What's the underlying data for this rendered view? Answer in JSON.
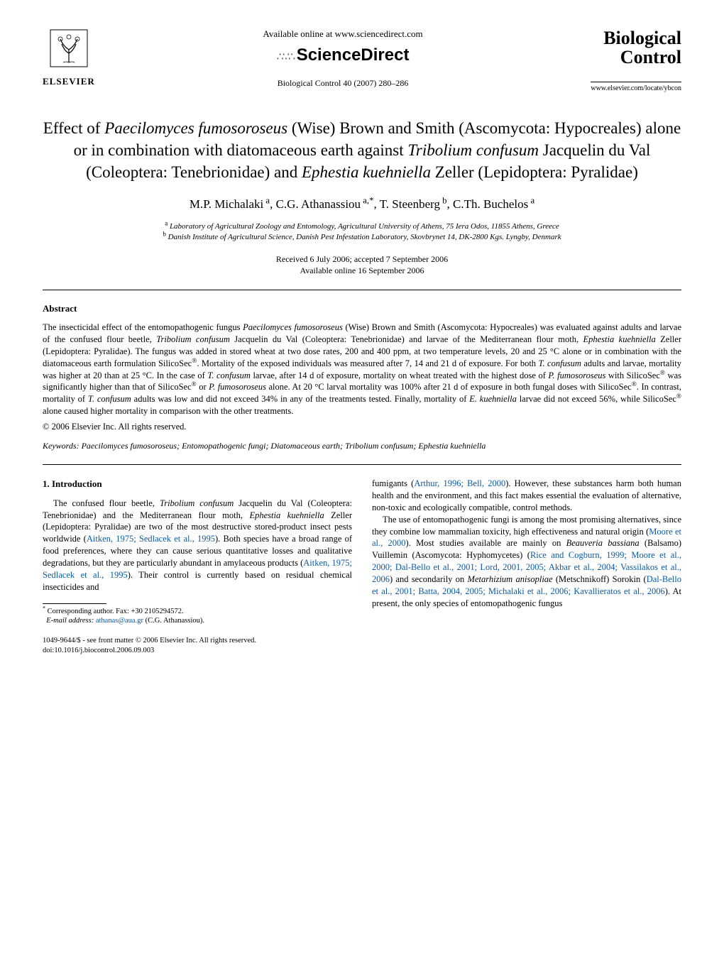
{
  "header": {
    "publisher_name": "ELSEVIER",
    "available_online": "Available online at www.sciencedirect.com",
    "platform_name": "ScienceDirect",
    "journal_citation": "Biological Control 40 (2007) 280–286",
    "journal_name_line1": "Biological",
    "journal_name_line2": "Control",
    "journal_url": "www.elsevier.com/locate/ybcon"
  },
  "title": "Effect of <em>Paecilomyces fumosoroseus</em> (Wise) Brown and Smith (Ascomycota: Hypocreales) alone or in combination with diatomaceous earth against <em>Tribolium confusum</em> Jacquelin du Val (Coleoptera: Tenebrionidae) and <em>Ephestia kuehniella</em> Zeller (Lepidoptera: Pyralidae)",
  "authors": "M.P. Michalaki<sup> a</sup>, C.G. Athanassiou<sup> a,*</sup>, T. Steenberg<sup> b</sup>, C.Th. Buchelos<sup> a</sup>",
  "affiliations": [
    "<sup>a</sup> Laboratory of Agricultural Zoology and Entomology, Agricultural University of Athens, 75 Iera Odos, 11855 Athens, Greece",
    "<sup>b</sup> Danish Institute of Agricultural Science, Danish Pest Infestation Laboratory, Skovbrynet 14, DK-2800 Kgs. Lyngby, Denmark"
  ],
  "dates": {
    "received_accepted": "Received 6 July 2006; accepted 7 September 2006",
    "available_online": "Available online 16 September 2006"
  },
  "abstract": {
    "heading": "Abstract",
    "body": "The insecticidal effect of the entomopathogenic fungus <em>Paecilomyces fumosoroseus</em> (Wise) Brown and Smith (Ascomycota: Hypocreales) was evaluated against adults and larvae of the confused flour beetle, <em>Tribolium confusum</em> Jacquelin du Val (Coleoptera: Tenebrionidae) and larvae of the Mediterranean flour moth, <em>Ephestia kuehniella</em> Zeller (Lepidoptera: Pyralidae). The fungus was added in stored wheat at two dose rates, 200 and 400 ppm, at two temperature levels, 20 and 25 °C alone or in combination with the diatomaceous earth formulation SilicoSec<sup>®</sup>. Mortality of the exposed individuals was measured after 7, 14 and 21 d of exposure. For both <em>T. confusum</em> adults and larvae, mortality was higher at 20 than at 25 °C. In the case of <em>T. confusum</em> larvae, after 14 d of exposure, mortality on wheat treated with the highest dose of <em>P. fumosoroseus</em> with SilicoSec<sup>®</sup> was significantly higher than that of SilicoSec<sup>®</sup> or <em>P. fumosoroseus</em> alone. At 20 °C larval mortality was 100% after 21 d of exposure in both fungal doses with SilicoSec<sup>®</sup>. In contrast, mortality of <em>T. confusum</em> adults was low and did not exceed 34% in any of the treatments tested. Finally, mortality of <em>E. kuehniella</em> larvae did not exceed 56%, while SilicoSec<sup>®</sup> alone caused higher mortality in comparison with the other treatments.",
    "copyright": "© 2006 Elsevier Inc. All rights reserved."
  },
  "keywords": {
    "label": "Keywords:",
    "text": " <em>Paecilomyces fumosoroseus</em>; Entomopathogenic fungi; Diatomaceous earth; <em>Tribolium confusum</em>; <em>Ephestia kuehniella</em>"
  },
  "introduction": {
    "heading": "1. Introduction",
    "col1_paras": [
      "The confused flour beetle, <em>Tribolium confusum</em> Jacquelin du Val (Coleoptera: Tenebrionidae) and the Mediterranean flour moth, <em>Ephestia kuehniella</em> Zeller (Lepidoptera: Pyralidae) are two of the most destructive stored-product insect pests worldwide (<span class=\"ref-link\">Aitken, 1975; Sedlacek et al., 1995</span>). Both species have a broad range of food preferences, where they can cause serious quantitative losses and qualitative degradations, but they are particularly abundant in amylaceous products (<span class=\"ref-link\">Aitken, 1975; Sedlacek et al., 1995</span>). Their control is currently based on residual chemical insecticides and"
    ],
    "col2_paras": [
      "fumigants (<span class=\"ref-link\">Arthur, 1996; Bell, 2000</span>). However, these substances harm both human health and the environment, and this fact makes essential the evaluation of alternative, non-toxic and ecologically compatible, control methods.",
      "The use of entomopathogenic fungi is among the most promising alternatives, since they combine low mammalian toxicity, high effectiveness and natural origin (<span class=\"ref-link\">Moore et al., 2000</span>). Most studies available are mainly on <em>Beauveria bassiana</em> (Balsamo) Vuillemin (Ascomycota: Hyphomycetes) (<span class=\"ref-link\">Rice and Cogburn, 1999; Moore et al., 2000; Dal-Bello et al., 2001; Lord, 2001, 2005; Akbar et al., 2004; Vassilakos et al., 2006</span>) and secondarily on <em>Metarhizium anisopliae</em> (Metschnikoff) Sorokin (<span class=\"ref-link\">Dal-Bello et al., 2001; Batta, 2004, 2005; Michalaki et al., 2006; Kavallieratos et al., 2006</span>). At present, the only species of entomopathogenic fungus"
    ]
  },
  "footnotes": {
    "corresponding": "Corresponding author. Fax: +30 2105294572.",
    "email_label": "E-mail address:",
    "email": "athanas@aua.gr",
    "email_name": "(C.G. Athanassiou)."
  },
  "doi": {
    "front_matter": "1049-9644/$ - see front matter © 2006 Elsevier Inc. All rights reserved.",
    "doi": "doi:10.1016/j.biocontrol.2006.09.003"
  },
  "colors": {
    "text": "#000000",
    "link": "#0a5aa6",
    "background": "#ffffff"
  },
  "typography": {
    "body_font": "Times New Roman",
    "title_fontsize": 23,
    "author_fontsize": 17,
    "body_fontsize": 12.5,
    "affiliation_fontsize": 11,
    "footnote_fontsize": 10.5
  }
}
